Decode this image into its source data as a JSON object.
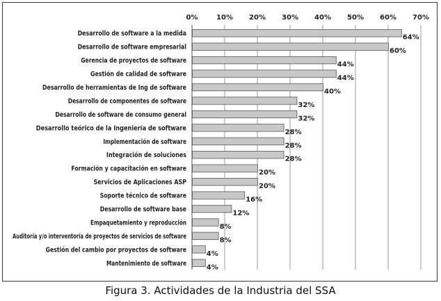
{
  "caption": "Figura 3. Actividades de la Industria del SSA",
  "chart_data": {
    "type": "bar",
    "orientation": "horizontal",
    "categories": [
      "Desarrollo de software a la medida",
      "Desarrollo de software empresarial",
      "Gerencia de proyectos de software",
      "Gestión de calidad de software",
      "Desarrollo de herramientas de Ing de software",
      "Desarrollo de componentes de software",
      "Desarrollo de software de consumo general",
      "Desarrollo teórico de la Ingeniería de software",
      "Implementación de software",
      "Integración de soluciones",
      "Formación y capacitación en software",
      "Servicios de Aplicaciones ASP",
      "Soporte técnico de software",
      "Desarrollo de software base",
      "Empaquetamiento y reproducción",
      "Auditoría y/o interventoría de proyectos de servicios de software",
      "Gestión del cambio por proyectos de software",
      "Mantenimiento de software"
    ],
    "values": [
      64,
      60,
      44,
      44,
      40,
      32,
      32,
      28,
      28,
      28,
      20,
      20,
      16,
      12,
      8,
      8,
      4,
      4
    ],
    "data_labels": [
      "64%",
      "60%",
      "44%",
      "44%",
      "40%",
      "32%",
      "32%",
      "28%",
      "28%",
      "28%",
      "20%",
      "20%",
      "16%",
      "12%",
      "8%",
      "8%",
      "4%",
      "4%"
    ],
    "xticks": [
      "0%",
      "10%",
      "20%",
      "30%",
      "40%",
      "50%",
      "60%",
      "70%"
    ],
    "xlim": [
      0,
      70
    ],
    "grid": true,
    "legend": "none",
    "bar_color": "#c8c8c8",
    "bar_edge_color": "#555555"
  }
}
